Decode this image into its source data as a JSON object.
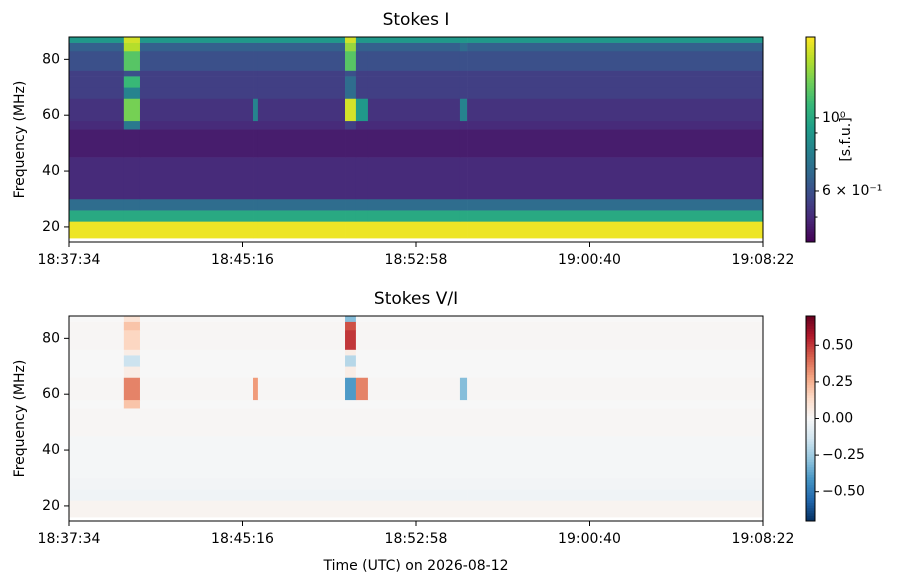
{
  "chart_data": [
    {
      "type": "heatmap",
      "title": "Stokes I",
      "y_label": "Frequency (MHz)",
      "colorbar_label": "[s.f.u.]",
      "colormap": "viridis",
      "color_scale": "log",
      "clim": [
        0.42,
        1.76
      ],
      "cticks": [
        {
          "value": 1,
          "label": "10⁰"
        },
        {
          "value": 0.6,
          "label": "6 × 10⁻¹"
        }
      ],
      "cminor_ticks": [
        0.5,
        0.7,
        0.8,
        0.9
      ],
      "xlim": [
        "18:37:34",
        "19:08:22"
      ],
      "xticks": [
        "18:37:34",
        "18:45:16",
        "18:52:58",
        "19:00:40",
        "19:08:22"
      ],
      "ylim": [
        14.6,
        88
      ],
      "yticks": [
        20,
        40,
        60,
        80
      ],
      "x": [
        "18:37:34",
        "18:40:00",
        "18:40:43",
        "18:45:44",
        "18:45:57",
        "18:49:49",
        "18:50:18",
        "18:50:50",
        "18:54:55",
        "18:55:14",
        "19:08:22"
      ],
      "y": [
        14.6,
        16,
        22,
        26,
        30,
        45,
        55,
        58,
        66,
        70,
        74,
        76,
        83,
        86,
        88
      ],
      "values": [
        [
          null,
          null,
          null,
          null,
          null,
          null,
          null,
          null,
          null,
          null
        ],
        [
          1.7,
          1.7,
          1.7,
          1.7,
          1.7,
          1.7,
          1.7,
          1.7,
          1.7,
          1.7
        ],
        [
          1.0,
          1.0,
          1.0,
          1.0,
          1.0,
          1.0,
          1.0,
          1.0,
          1.0,
          1.0
        ],
        [
          0.7,
          0.7,
          0.7,
          0.7,
          0.7,
          0.7,
          0.7,
          0.7,
          0.7,
          0.7
        ],
        [
          0.5,
          0.5,
          0.5,
          0.5,
          0.5,
          0.5,
          0.5,
          0.5,
          0.5,
          0.5
        ],
        [
          0.47,
          0.47,
          0.47,
          0.47,
          0.47,
          0.47,
          0.47,
          0.47,
          0.47,
          0.47
        ],
        [
          0.5,
          0.75,
          0.5,
          0.5,
          0.5,
          0.55,
          0.5,
          0.5,
          0.5,
          0.5
        ],
        [
          0.52,
          1.3,
          0.52,
          0.8,
          0.52,
          1.6,
          0.9,
          0.52,
          0.8,
          0.52
        ],
        [
          0.55,
          0.8,
          0.55,
          0.55,
          0.55,
          0.7,
          0.55,
          0.55,
          0.55,
          0.55
        ],
        [
          0.55,
          1.1,
          0.55,
          0.55,
          0.55,
          0.7,
          0.55,
          0.55,
          0.55,
          0.55
        ],
        [
          0.55,
          0.6,
          0.55,
          0.55,
          0.55,
          0.6,
          0.55,
          0.55,
          0.55,
          0.55
        ],
        [
          0.6,
          1.2,
          0.6,
          0.6,
          0.6,
          1.2,
          0.6,
          0.6,
          0.6,
          0.6
        ],
        [
          0.65,
          1.5,
          0.65,
          0.65,
          0.65,
          1.4,
          0.65,
          0.65,
          0.7,
          0.65
        ],
        [
          0.9,
          1.6,
          0.9,
          0.9,
          0.9,
          1.6,
          0.9,
          0.9,
          0.9,
          0.9
        ]
      ]
    },
    {
      "type": "heatmap",
      "title": "Stokes V/I",
      "y_label": "Frequency (MHz)",
      "x_label": "Time (UTC) on 2026-08-12",
      "colormap": "RdBu_r",
      "color_scale": "linear",
      "clim": [
        -0.7,
        0.7
      ],
      "cticks": [
        {
          "value": 0.5,
          "label": "0.50"
        },
        {
          "value": 0.25,
          "label": "0.25"
        },
        {
          "value": 0,
          "label": "0.00"
        },
        {
          "value": -0.25,
          "label": "−0.25"
        },
        {
          "value": -0.5,
          "label": "−0.50"
        }
      ],
      "xlim": [
        "18:37:34",
        "19:08:22"
      ],
      "xticks": [
        "18:37:34",
        "18:45:16",
        "18:52:58",
        "19:00:40",
        "19:08:22"
      ],
      "ylim": [
        14.6,
        88
      ],
      "yticks": [
        20,
        40,
        60,
        80
      ],
      "x": [
        "18:37:34",
        "18:40:00",
        "18:40:43",
        "18:45:44",
        "18:45:57",
        "18:49:49",
        "18:50:18",
        "18:50:50",
        "18:54:55",
        "18:55:14",
        "19:08:22"
      ],
      "y": [
        14.6,
        16,
        22,
        26,
        30,
        45,
        55,
        58,
        66,
        70,
        74,
        76,
        83,
        86,
        88
      ],
      "values": [
        [
          null,
          null,
          null,
          null,
          null,
          null,
          null,
          null,
          null,
          null
        ],
        [
          0.02,
          0.02,
          0.02,
          0.02,
          0.02,
          0.02,
          0.02,
          0.02,
          0.02,
          0.02
        ],
        [
          -0.03,
          -0.03,
          -0.03,
          -0.03,
          -0.03,
          -0.03,
          -0.03,
          -0.03,
          -0.03,
          -0.03
        ],
        [
          -0.02,
          -0.02,
          -0.02,
          -0.02,
          -0.02,
          -0.02,
          -0.02,
          -0.02,
          -0.02,
          -0.02
        ],
        [
          -0.01,
          -0.01,
          -0.01,
          -0.01,
          -0.01,
          -0.01,
          -0.01,
          -0.01,
          -0.01,
          -0.01
        ],
        [
          0.01,
          0.01,
          0.01,
          0.01,
          0.01,
          0.01,
          0.01,
          0.01,
          0.01,
          0.01
        ],
        [
          0,
          0.2,
          0,
          0,
          0,
          0,
          0,
          0,
          0,
          0
        ],
        [
          0.01,
          0.35,
          0.01,
          0.3,
          0.01,
          -0.4,
          0.35,
          0.01,
          -0.3,
          0.01
        ],
        [
          0,
          0.05,
          0,
          0,
          0,
          0.05,
          0,
          0,
          0,
          0
        ],
        [
          0,
          -0.15,
          0,
          0,
          0,
          -0.2,
          0,
          0,
          0,
          0
        ],
        [
          0,
          0.05,
          0,
          0,
          0,
          0.05,
          0,
          0,
          0,
          0
        ],
        [
          0.01,
          0.15,
          0.01,
          0.01,
          0.01,
          0.5,
          0.01,
          0.01,
          0.01,
          0.01
        ],
        [
          0.01,
          0.2,
          0.01,
          0.01,
          0.01,
          0.45,
          0.01,
          0.01,
          0.01,
          0.01
        ],
        [
          0,
          0.1,
          0,
          0,
          0,
          -0.3,
          0,
          0,
          0,
          0
        ]
      ]
    }
  ]
}
